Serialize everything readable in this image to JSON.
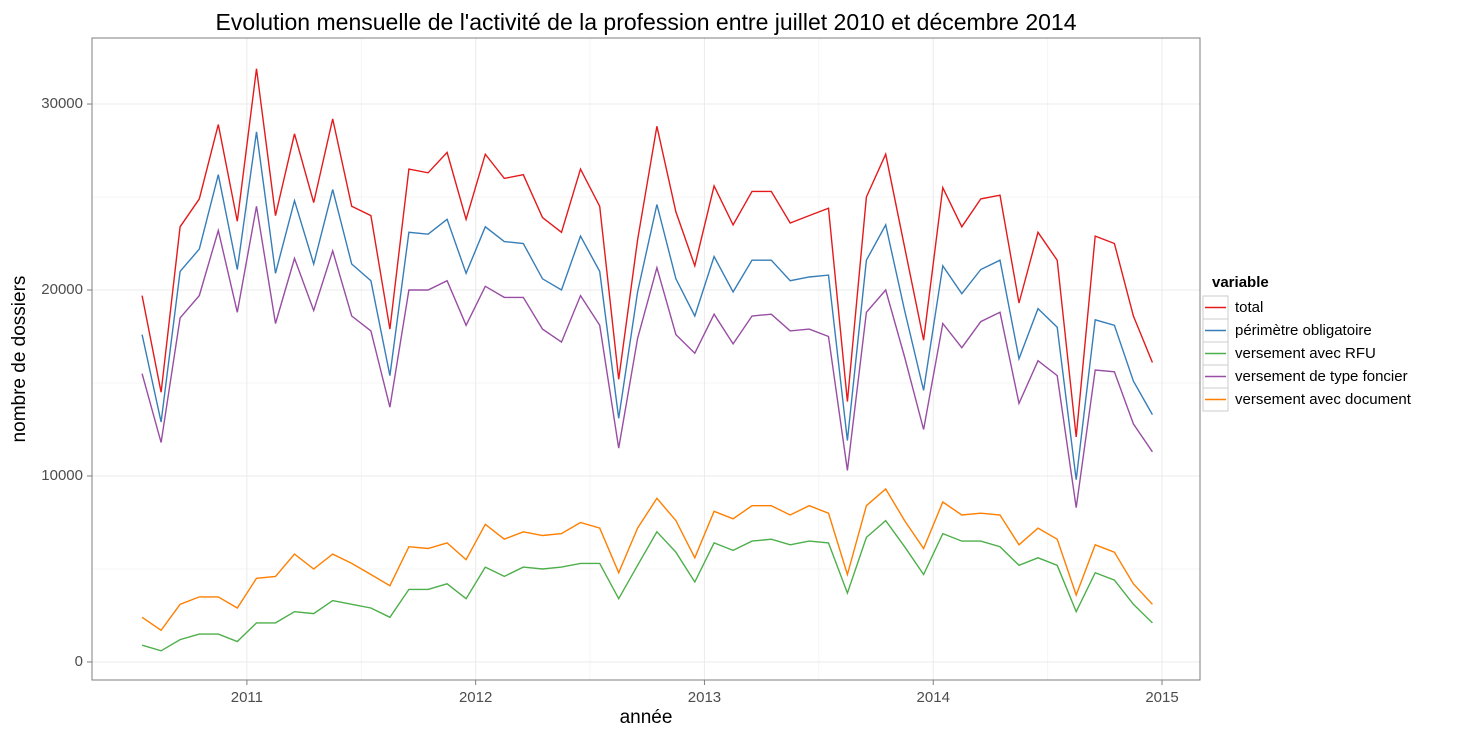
{
  "chart_data": {
    "type": "line",
    "title": "Evolution mensuelle de l'activité de la profession entre juillet 2010 et décembre 2014",
    "x_label": "année",
    "y_label": "nombre de dossiers",
    "legend_title": "variable",
    "legend": "right",
    "grid": true,
    "x": [
      2010.542,
      2010.625,
      2010.708,
      2010.792,
      2010.875,
      2010.958,
      2011.042,
      2011.125,
      2011.208,
      2011.292,
      2011.375,
      2011.458,
      2011.542,
      2011.625,
      2011.708,
      2011.792,
      2011.875,
      2011.958,
      2012.042,
      2012.125,
      2012.208,
      2012.292,
      2012.375,
      2012.458,
      2012.542,
      2012.625,
      2012.708,
      2012.792,
      2012.875,
      2012.958,
      2013.042,
      2013.125,
      2013.208,
      2013.292,
      2013.375,
      2013.458,
      2013.542,
      2013.625,
      2013.708,
      2013.792,
      2013.875,
      2013.958,
      2014.042,
      2014.125,
      2014.208,
      2014.292,
      2014.375,
      2014.458,
      2014.542,
      2014.625,
      2014.708,
      2014.792,
      2014.875,
      2014.958
    ],
    "xlim": [
      2010.323,
      2015.166
    ],
    "xticks": [
      2011,
      2012,
      2013,
      2014,
      2015
    ],
    "ylim": [
      -970,
      33550
    ],
    "yticks": [
      0,
      10000,
      20000,
      30000
    ],
    "series": [
      {
        "name": "total",
        "color": "#e41a1c",
        "values": [
          19700,
          14500,
          23400,
          24900,
          28900,
          23700,
          31900,
          24000,
          28400,
          24700,
          29200,
          24500,
          24000,
          17900,
          26500,
          26300,
          27400,
          23800,
          27300,
          26000,
          26200,
          23900,
          23100,
          26500,
          24500,
          15200,
          22700,
          28800,
          24200,
          21300,
          25600,
          23500,
          25300,
          25300,
          23600,
          24000,
          24400,
          14000,
          25000,
          27300,
          22300,
          17300,
          25500,
          23400,
          24900,
          25100,
          19300,
          23100,
          21600,
          12100,
          22900,
          22500,
          18600,
          16100
        ]
      },
      {
        "name": "périmètre obligatoire",
        "color": "#377eb8",
        "values": [
          17600,
          12900,
          21000,
          22200,
          26200,
          21100,
          28500,
          20900,
          24800,
          21400,
          25400,
          21400,
          20500,
          15400,
          23100,
          23000,
          23800,
          20900,
          23400,
          22600,
          22500,
          20600,
          20000,
          22900,
          21000,
          13100,
          19900,
          24600,
          20600,
          18600,
          21800,
          19900,
          21600,
          21600,
          20500,
          20700,
          20800,
          11900,
          21600,
          23500,
          18900,
          14600,
          21300,
          19800,
          21100,
          21600,
          16300,
          19000,
          18000,
          9800,
          18400,
          18100,
          15100,
          13300
        ]
      },
      {
        "name": "versement avec RFU",
        "color": "#4daf4a",
        "values": [
          900,
          600,
          1200,
          1500,
          1500,
          1100,
          2100,
          2100,
          2700,
          2600,
          3300,
          3100,
          2900,
          2400,
          3900,
          3900,
          4200,
          3400,
          5100,
          4600,
          5100,
          5000,
          5100,
          5300,
          5300,
          3400,
          5200,
          7000,
          5900,
          4300,
          6400,
          6000,
          6500,
          6600,
          6300,
          6500,
          6400,
          3700,
          6700,
          7600,
          6200,
          4700,
          6900,
          6500,
          6500,
          6200,
          5200,
          5600,
          5200,
          2700,
          4800,
          4400,
          3100,
          2100
        ]
      },
      {
        "name": "versement de type foncier",
        "color": "#984ea3",
        "values": [
          15500,
          11800,
          18500,
          19700,
          23200,
          18800,
          24500,
          18200,
          21700,
          18900,
          22100,
          18600,
          17800,
          13700,
          20000,
          20000,
          20500,
          18100,
          20200,
          19600,
          19600,
          17900,
          17200,
          19700,
          18100,
          11500,
          17400,
          21200,
          17600,
          16600,
          18700,
          17100,
          18600,
          18700,
          17800,
          17900,
          17500,
          10300,
          18800,
          20000,
          16400,
          12500,
          18200,
          16900,
          18300,
          18800,
          13900,
          16200,
          15400,
          8300,
          15700,
          15600,
          12800,
          11300
        ]
      },
      {
        "name": "versement avec document",
        "color": "#ff7f00",
        "values": [
          2400,
          1700,
          3100,
          3500,
          3500,
          2900,
          4500,
          4600,
          5800,
          5000,
          5800,
          5300,
          4700,
          4100,
          6200,
          6100,
          6400,
          5500,
          7400,
          6600,
          7000,
          6800,
          6900,
          7500,
          7200,
          4800,
          7200,
          8800,
          7600,
          5600,
          8100,
          7700,
          8400,
          8400,
          7900,
          8400,
          8000,
          4700,
          8400,
          9300,
          7600,
          6100,
          8600,
          7900,
          8000,
          7900,
          6300,
          7200,
          6600,
          3600,
          6300,
          5900,
          4200,
          3100
        ]
      }
    ]
  }
}
